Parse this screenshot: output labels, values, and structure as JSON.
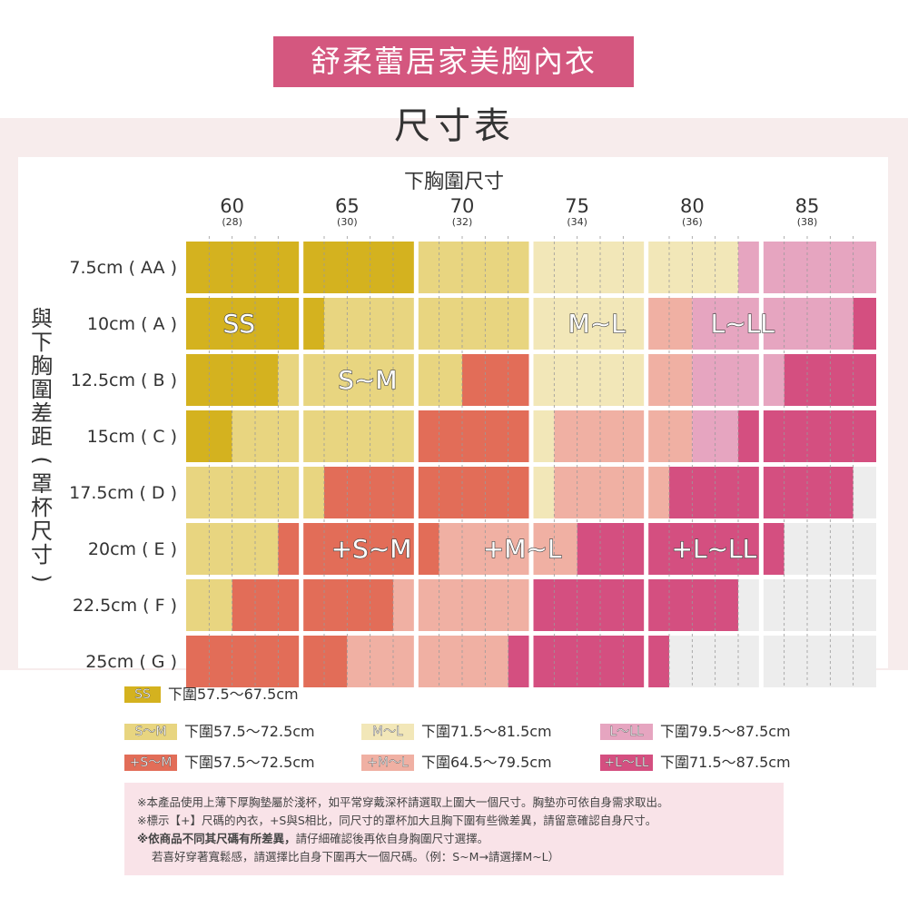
{
  "title": "舒柔蕾居家美胸內衣",
  "subtitle": "尺寸表",
  "chart_data": {
    "type": "heatmap",
    "xlabel": "下胸圍尺寸",
    "ylabel": "與下胸圍差距(罩杯尺寸)",
    "x_ticks": [
      {
        "value": "60",
        "sub": "(28)"
      },
      {
        "value": "65",
        "sub": "(30)"
      },
      {
        "value": "70",
        "sub": "(32)"
      },
      {
        "value": "75",
        "sub": "(34)"
      },
      {
        "value": "80",
        "sub": "(36)"
      },
      {
        "value": "85",
        "sub": "(38)"
      }
    ],
    "x_range": [
      58,
      88
    ],
    "rows": [
      {
        "label": "7.5cm ( AA )",
        "segments": [
          [
            58,
            63,
            "SS"
          ],
          [
            63,
            68,
            "SS"
          ],
          [
            68,
            73,
            "SML"
          ],
          [
            73,
            77,
            "ML"
          ],
          [
            77,
            82,
            "ML"
          ],
          [
            82,
            83,
            "LLL"
          ],
          [
            83,
            88,
            "LLL"
          ]
        ]
      },
      {
        "label": "10cm ( A )",
        "segments": [
          [
            58,
            63,
            "SS"
          ],
          [
            63,
            64,
            "SS"
          ],
          [
            64,
            68,
            "SM"
          ],
          [
            68,
            73,
            "SM"
          ],
          [
            73,
            77,
            "ML"
          ],
          [
            77,
            78,
            "ML"
          ],
          [
            78,
            80,
            "PML"
          ],
          [
            80,
            82,
            "LLL"
          ],
          [
            82,
            87,
            "LLL"
          ],
          [
            87,
            88,
            "PLLL"
          ]
        ]
      },
      {
        "label": "12.5cm ( B )",
        "segments": [
          [
            58,
            62,
            "SS"
          ],
          [
            62,
            63,
            "SM"
          ],
          [
            63,
            68,
            "SM"
          ],
          [
            68,
            70,
            "SM"
          ],
          [
            70,
            73,
            "PSM"
          ],
          [
            73,
            77,
            "ML"
          ],
          [
            77,
            78,
            "ML"
          ],
          [
            78,
            80,
            "PML"
          ],
          [
            80,
            83,
            "LLL"
          ],
          [
            83,
            84,
            "LLL"
          ],
          [
            84,
            88,
            "PLLL"
          ]
        ]
      },
      {
        "label": "15cm ( C )",
        "segments": [
          [
            58,
            60,
            "SS"
          ],
          [
            60,
            63,
            "SM"
          ],
          [
            63,
            68,
            "SM"
          ],
          [
            68,
            73,
            "PSM"
          ],
          [
            73,
            74,
            "ML"
          ],
          [
            74,
            78,
            "PML"
          ],
          [
            78,
            80,
            "PML"
          ],
          [
            80,
            82,
            "LLL"
          ],
          [
            82,
            83,
            "PLLL"
          ],
          [
            83,
            88,
            "PLLL"
          ]
        ]
      },
      {
        "label": "17.5cm ( D )",
        "segments": [
          [
            58,
            63,
            "SM"
          ],
          [
            63,
            64,
            "SM"
          ],
          [
            64,
            68,
            "PSM"
          ],
          [
            68,
            73,
            "PSM"
          ],
          [
            73,
            74,
            "ML"
          ],
          [
            74,
            78,
            "PML"
          ],
          [
            78,
            79,
            "PML"
          ],
          [
            79,
            83,
            "PLLL"
          ],
          [
            83,
            87,
            "PLLL"
          ],
          [
            87,
            88,
            "NONE"
          ]
        ]
      },
      {
        "label": "20cm ( E )",
        "segments": [
          [
            58,
            62,
            "SM"
          ],
          [
            62,
            63,
            "PSM"
          ],
          [
            63,
            68,
            "PSM"
          ],
          [
            68,
            69,
            "PSM"
          ],
          [
            69,
            73,
            "PML"
          ],
          [
            73,
            75,
            "PML"
          ],
          [
            75,
            78,
            "PLLL"
          ],
          [
            78,
            83,
            "PLLL"
          ],
          [
            83,
            84,
            "PLLL"
          ],
          [
            84,
            88,
            "NONE"
          ]
        ]
      },
      {
        "label": "22.5cm ( F )",
        "segments": [
          [
            58,
            60,
            "SM"
          ],
          [
            60,
            63,
            "PSM"
          ],
          [
            63,
            67,
            "PSM"
          ],
          [
            67,
            68,
            "PML"
          ],
          [
            68,
            73,
            "PML"
          ],
          [
            73,
            78,
            "PLLL"
          ],
          [
            78,
            82,
            "PLLL"
          ],
          [
            82,
            88,
            "NONE"
          ]
        ]
      },
      {
        "label": "25cm ( G )",
        "segments": [
          [
            58,
            63,
            "PSM"
          ],
          [
            63,
            65,
            "PSM"
          ],
          [
            65,
            68,
            "PML"
          ],
          [
            68,
            72,
            "PML"
          ],
          [
            72,
            73,
            "PLLL"
          ],
          [
            73,
            78,
            "PLLL"
          ],
          [
            78,
            79,
            "PLLL"
          ],
          [
            79,
            88,
            "NONE"
          ]
        ]
      }
    ],
    "zone_labels": [
      {
        "text": "SS",
        "x": 59.6,
        "row": 1
      },
      {
        "text": "S~M",
        "x": 64.6,
        "row": 2
      },
      {
        "text": "M~L",
        "x": 74.6,
        "row": 1
      },
      {
        "text": "L~LL",
        "x": 80.8,
        "row": 1
      },
      {
        "text": "+S~M",
        "x": 64.3,
        "row": 5
      },
      {
        "text": "+M~L",
        "x": 70.9,
        "row": 5
      },
      {
        "text": "+L~LL",
        "x": 79.1,
        "row": 5
      }
    ],
    "legend": [
      {
        "key": "SS",
        "swatch": "SS",
        "text": "下圍57.5～67.5cm"
      },
      {
        "key": "SM",
        "swatch": "S～M",
        "text": "下圍57.5～72.5cm"
      },
      {
        "key": "ML",
        "swatch": "M～L",
        "text": "下圍71.5～81.5cm"
      },
      {
        "key": "LLL",
        "swatch": "L～LL",
        "text": "下圍79.5～87.5cm"
      },
      {
        "key": "PSM",
        "swatch": "+S～M",
        "text": "下圍57.5～72.5cm"
      },
      {
        "key": "PML",
        "swatch": "+M～L",
        "text": "下圍64.5～79.5cm"
      },
      {
        "key": "PLLL",
        "swatch": "+L～LL",
        "text": "下圍71.5～87.5cm"
      }
    ],
    "colors": {
      "SS": "#d4b21f",
      "SM": "#e8d580",
      "SML": "#e8d580",
      "ML": "#f2e7b8",
      "LLL": "#e6a5c0",
      "PSM": "#e26d58",
      "PML": "#f0b0a3",
      "PLLL": "#d44f80",
      "NONE": "#ededed"
    }
  },
  "notes": [
    "※本產品使用上薄下厚胸墊屬於淺杯，如平常穿戴深杯請選取上圍大一個尺寸。胸墊亦可依自身需求取出。",
    "※標示【+】尺碼的內衣，+S與S相比，同尺寸的罩杯加大且胸下圍有些微差異，請留意確認自身尺寸。",
    "※依商品不同其尺碼有所差異，",
    "請仔細確認後再依自身胸圍尺寸選擇。",
    "若喜好穿著寬鬆感，請選擇比自身下圍再大一個尺碼。（例：S~M→請選擇M~L）"
  ]
}
